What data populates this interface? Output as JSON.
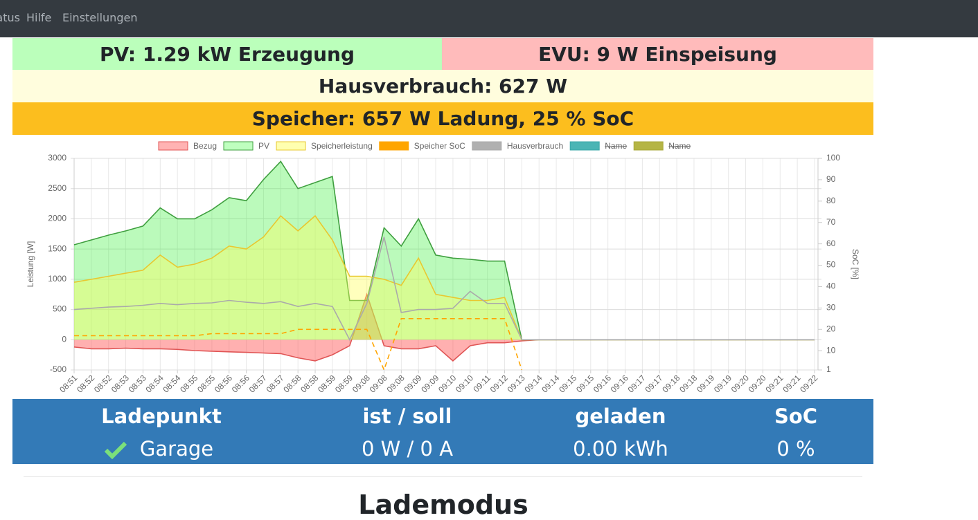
{
  "nav": {
    "items": [
      "Status",
      "Hilfe",
      "Einstellungen"
    ]
  },
  "status": {
    "pv": "PV: 1.29 kW Erzeugung",
    "evu": "EVU: 9 W Einspeisung",
    "haus": "Hausverbrauch: 627 W",
    "speicher": "Speicher: 657 W Ladung, 25 % SoC"
  },
  "chart_data": {
    "type": "line",
    "y_label": "Leistung [W]",
    "y2_label": "SoC [%]",
    "categories": [
      "08:51",
      "08:52",
      "08:52",
      "08:53",
      "08:53",
      "08:54",
      "08:54",
      "08:55",
      "08:55",
      "08:56",
      "08:56",
      "08:57",
      "08:57",
      "08:58",
      "08:58",
      "08:59",
      "08:59",
      "09:08",
      "09:08",
      "09:08",
      "09:09",
      "09:09",
      "09:10",
      "09:10",
      "09:11",
      "09:12",
      "09:13",
      "09:14",
      "09:14",
      "09:15",
      "09:15",
      "09:16",
      "09:16",
      "09:17",
      "09:17",
      "09:18",
      "09:18",
      "09:19",
      "09:19",
      "09:20",
      "09:20",
      "09:21",
      "09:21",
      "09:22"
    ],
    "series": [
      {
        "name": "Bezug",
        "color": "#e05555",
        "fill": "rgba(255,80,80,0.45)",
        "legend_fill": "#ffb3b3",
        "values": [
          -120,
          -150,
          -150,
          -140,
          -150,
          -150,
          -160,
          -180,
          -190,
          -200,
          -210,
          -220,
          -230,
          -300,
          -350,
          -250,
          -100,
          750,
          -100,
          -150,
          -150,
          -100,
          -350,
          -100,
          -50,
          -50,
          -20,
          0,
          0,
          0,
          0,
          0,
          0,
          0,
          0,
          0,
          0,
          0,
          0,
          0,
          0,
          0,
          0,
          0
        ]
      },
      {
        "name": "PV",
        "color": "#3f9f3f",
        "fill": "rgba(60,240,60,0.35)",
        "legend_fill": "#bfffbf",
        "values": [
          1570,
          1650,
          1730,
          1800,
          1880,
          2180,
          2000,
          2000,
          2150,
          2350,
          2300,
          2650,
          2950,
          2500,
          2600,
          2700,
          650,
          650,
          1850,
          1550,
          2000,
          1400,
          1350,
          1330,
          1300,
          1300,
          0,
          0,
          0,
          0,
          0,
          0,
          0,
          0,
          0,
          0,
          0,
          0,
          0,
          0,
          0,
          0,
          0,
          0
        ]
      },
      {
        "name": "Speicherleistung",
        "color": "#e8c830",
        "fill": "rgba(255,255,90,0.4)",
        "legend_fill": "#ffffb0",
        "values": [
          950,
          1000,
          1050,
          1100,
          1150,
          1400,
          1200,
          1250,
          1350,
          1550,
          1500,
          1700,
          2050,
          1800,
          2050,
          1650,
          1050,
          1050,
          1000,
          900,
          1350,
          750,
          700,
          650,
          650,
          700,
          0,
          0,
          0,
          0,
          0,
          0,
          0,
          0,
          0,
          0,
          0,
          0,
          0,
          0,
          0,
          0,
          0,
          0
        ]
      },
      {
        "name": "Speicher SoC",
        "color": "#ffa500",
        "legend_fill": "#ffa500",
        "axis": "y2",
        "dashed": true,
        "values": [
          17,
          17,
          17,
          17,
          17,
          17,
          17,
          17,
          18,
          18,
          18,
          18,
          18,
          20,
          20,
          20,
          20,
          20,
          1,
          25,
          25,
          25,
          25,
          25,
          25,
          25,
          1,
          null,
          null,
          null,
          null,
          null,
          null,
          null,
          null,
          null,
          null,
          null,
          null,
          null,
          null,
          null,
          null,
          null
        ]
      },
      {
        "name": "Hausverbrauch",
        "color": "#aaaaaa",
        "legend_fill": "#b0b0b0",
        "values": [
          500,
          520,
          540,
          550,
          570,
          600,
          580,
          600,
          610,
          650,
          620,
          600,
          630,
          550,
          600,
          550,
          0,
          600,
          1700,
          450,
          500,
          500,
          520,
          800,
          600,
          600,
          0,
          0,
          0,
          0,
          0,
          0,
          0,
          0,
          0,
          0,
          0,
          0,
          0,
          0,
          0,
          0,
          0,
          0
        ]
      },
      {
        "name": "Name",
        "color": "#3aa8a8",
        "legend_fill": "#4bb5b5",
        "hidden": true
      },
      {
        "name": "Name",
        "color": "#a8a838",
        "legend_fill": "#b5b545",
        "hidden": true
      }
    ],
    "ylim": [
      -500,
      3000
    ],
    "yticks": [
      -500,
      0,
      500,
      1000,
      1500,
      2000,
      2500,
      3000
    ],
    "y2lim": [
      1,
      100
    ],
    "y2ticks": [
      1,
      10,
      20,
      30,
      40,
      50,
      60,
      70,
      80,
      90,
      100
    ],
    "grid": true,
    "legend": "top"
  },
  "table": {
    "header": [
      "Ladepunkt",
      "ist / soll",
      "geladen",
      "SoC"
    ],
    "rows": [
      [
        "Garage",
        "0 W / 0 A",
        "0.00 kWh",
        "0 %"
      ]
    ]
  },
  "section": {
    "title": "Lademodus"
  }
}
